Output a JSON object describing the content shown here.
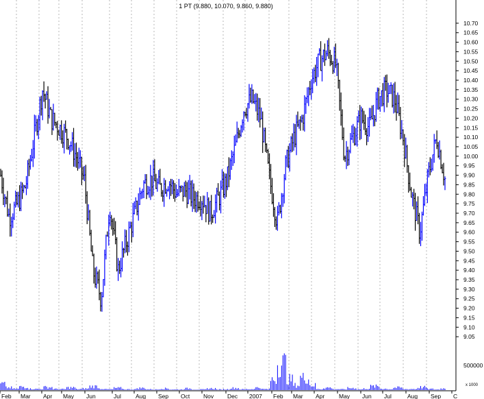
{
  "chart_data": {
    "type": "line",
    "style": "OHLC bar chart with volume panel",
    "title": "1 PT (9.880, 10.070, 9.860, 9.880)",
    "colors": {
      "up_bars": "#0000ff",
      "down_bars": "#000000",
      "volume": "#0000ff",
      "grid": "#999999"
    },
    "price_axis": {
      "position": "right",
      "ylim": [
        9.0,
        10.75
      ],
      "ticks": [
        "10.70",
        "10.65",
        "10.60",
        "10.55",
        "10.50",
        "10.45",
        "10.40",
        "10.35",
        "10.30",
        "10.25",
        "10.20",
        "10.15",
        "10.10",
        "10.05",
        "10.00",
        "9.95",
        "9.90",
        "9.85",
        "9.80",
        "9.75",
        "9.70",
        "9.65",
        "9.60",
        "9.55",
        "9.50",
        "9.45",
        "9.40",
        "9.35",
        "9.30",
        "9.25",
        "9.20",
        "9.15",
        "9.10",
        "9.05"
      ]
    },
    "volume_axis": {
      "position": "right",
      "ylim": [
        0,
        70000
      ],
      "ticks": [
        "500000"
      ],
      "scale_label": "x 1000"
    },
    "x_axis": {
      "labels": [
        "Feb",
        "Mar",
        "Apr",
        "May",
        "Jun",
        "Jul",
        "Aug",
        "Sep",
        "Oct",
        "Nov",
        "Dec",
        "2007",
        "Feb",
        "Mar",
        "Apr",
        "May",
        "Jun",
        "Jul",
        "Aug",
        "Sep",
        "C"
      ],
      "grid": "vertical dashed at month boundaries"
    },
    "series": [
      {
        "values": [
          {
            "x": "Feb",
            "y": 9.9
          },
          {
            "x": "Feb",
            "y": 9.68
          },
          {
            "x": "Feb",
            "y": 9.75
          },
          {
            "x": "Mar",
            "y": 9.85
          },
          {
            "x": "Mar",
            "y": 10.1
          },
          {
            "x": "Mar",
            "y": 10.35
          },
          {
            "x": "Apr",
            "y": 10.2
          },
          {
            "x": "Apr",
            "y": 10.15
          },
          {
            "x": "Apr",
            "y": 10.1
          },
          {
            "x": "May",
            "y": 10.0
          },
          {
            "x": "May",
            "y": 9.87
          },
          {
            "x": "May",
            "y": 9.4
          },
          {
            "x": "Jun",
            "y": 9.25
          },
          {
            "x": "Jun",
            "y": 9.75
          },
          {
            "x": "Jun",
            "y": 9.4
          },
          {
            "x": "Jul",
            "y": 9.55
          },
          {
            "x": "Jul",
            "y": 9.7
          },
          {
            "x": "Jul",
            "y": 9.85
          },
          {
            "x": "Aug",
            "y": 9.88
          },
          {
            "x": "Aug",
            "y": 9.83
          },
          {
            "x": "Sep",
            "y": 9.87
          },
          {
            "x": "Sep",
            "y": 9.8
          },
          {
            "x": "Oct",
            "y": 9.82
          },
          {
            "x": "Oct",
            "y": 9.78
          },
          {
            "x": "Nov",
            "y": 9.78
          },
          {
            "x": "Nov",
            "y": 9.7
          },
          {
            "x": "Dec",
            "y": 9.78
          },
          {
            "x": "Dec",
            "y": 9.88
          },
          {
            "x": "2007",
            "y": 10.05
          },
          {
            "x": "2007",
            "y": 10.25
          },
          {
            "x": "Feb",
            "y": 10.3
          },
          {
            "x": "Feb",
            "y": 10.2
          },
          {
            "x": "Feb",
            "y": 9.9
          },
          {
            "x": "Mar",
            "y": 9.65
          },
          {
            "x": "Mar",
            "y": 9.95
          },
          {
            "x": "Mar",
            "y": 10.1
          },
          {
            "x": "Apr",
            "y": 10.2
          },
          {
            "x": "Apr",
            "y": 10.4
          },
          {
            "x": "Apr",
            "y": 10.5
          },
          {
            "x": "May",
            "y": 10.55
          },
          {
            "x": "May",
            "y": 10.48
          },
          {
            "x": "May",
            "y": 10.0
          },
          {
            "x": "Jun",
            "y": 10.1
          },
          {
            "x": "Jun",
            "y": 10.2
          },
          {
            "x": "Jun",
            "y": 10.15
          },
          {
            "x": "Jul",
            "y": 10.3
          },
          {
            "x": "Jul",
            "y": 10.35
          },
          {
            "x": "Jul",
            "y": 10.3
          },
          {
            "x": "Aug",
            "y": 10.1
          },
          {
            "x": "Aug",
            "y": 9.8
          },
          {
            "x": "Aug",
            "y": 9.6
          },
          {
            "x": "Sep",
            "y": 9.9
          },
          {
            "x": "Sep",
            "y": 10.1
          },
          {
            "x": "Sep",
            "y": 9.88
          }
        ]
      }
    ],
    "volume": {
      "values": [
        {
          "x": "Feb",
          "y": 15000
        },
        {
          "x": "Mar",
          "y": 8000
        },
        {
          "x": "Apr",
          "y": 7000
        },
        {
          "x": "May",
          "y": 6000
        },
        {
          "x": "Jun",
          "y": 9000
        },
        {
          "x": "Jul",
          "y": 5000
        },
        {
          "x": "Aug",
          "y": 5000
        },
        {
          "x": "Sep",
          "y": 4000
        },
        {
          "x": "Oct",
          "y": 4000
        },
        {
          "x": "Nov",
          "y": 4000
        },
        {
          "x": "Dec",
          "y": 5000
        },
        {
          "x": "2007",
          "y": 6000
        },
        {
          "x": "Feb",
          "y": 65000
        },
        {
          "x": "Mar",
          "y": 30000
        },
        {
          "x": "Apr",
          "y": 6000
        },
        {
          "x": "May",
          "y": 5000
        },
        {
          "x": "Jun",
          "y": 9000
        },
        {
          "x": "Jul",
          "y": 6000
        },
        {
          "x": "Aug",
          "y": 7000
        },
        {
          "x": "Sep",
          "y": 4000
        }
      ]
    },
    "legend": "none"
  }
}
